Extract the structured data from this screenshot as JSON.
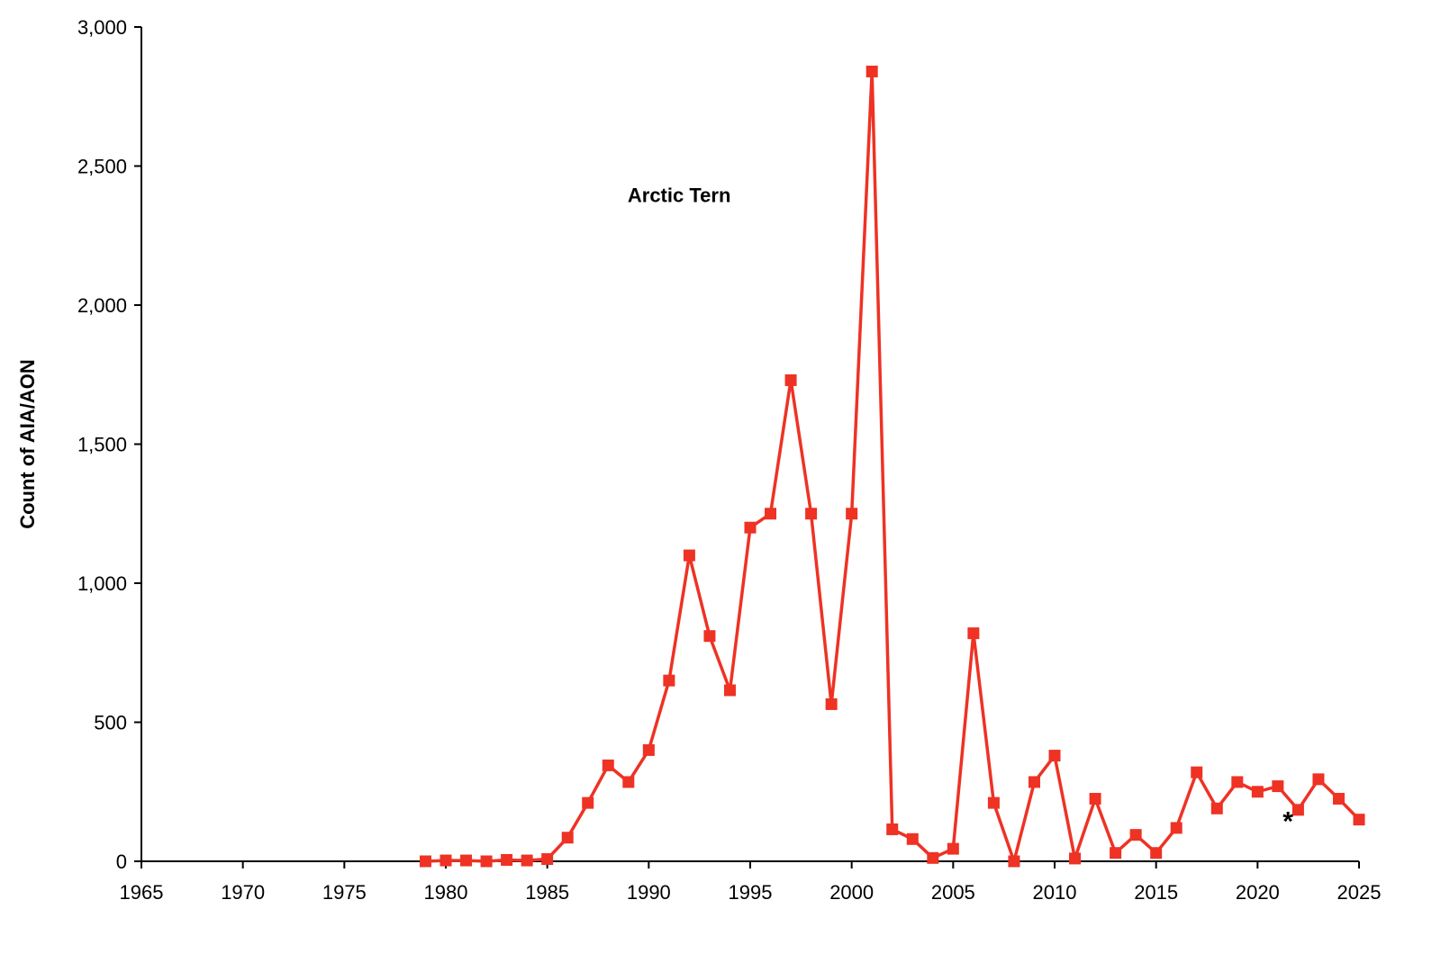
{
  "chart_data": {
    "type": "line",
    "title": "",
    "xlabel": "",
    "ylabel": "Count of AIA/AON",
    "xlim": [
      1965,
      2025
    ],
    "ylim": [
      0,
      3000
    ],
    "grid": false,
    "x_ticks": [
      1965,
      1970,
      1975,
      1980,
      1985,
      1990,
      1995,
      2000,
      2005,
      2010,
      2015,
      2020,
      2025
    ],
    "x_tick_labels": [
      "1965",
      "1970",
      "1975",
      "1980",
      "1985",
      "1990",
      "1995",
      "2000",
      "2005",
      "2010",
      "2015",
      "2020",
      "2025"
    ],
    "y_ticks": [
      0,
      500,
      1000,
      1500,
      2000,
      2500,
      3000
    ],
    "y_tick_labels": [
      "0",
      "500",
      "1,000",
      "1,500",
      "2,000",
      "2,500",
      "3,000"
    ],
    "series": [
      {
        "color": "#ee3224",
        "marker": "square",
        "x": [
          1979,
          1980,
          1981,
          1982,
          1983,
          1984,
          1985,
          1986,
          1987,
          1988,
          1989,
          1990,
          1991,
          1992,
          1993,
          1994,
          1995,
          1996,
          1997,
          1998,
          1999,
          2000,
          2001,
          2002,
          2003,
          2004,
          2005,
          2006,
          2007,
          2008,
          2009,
          2010,
          2011,
          2012,
          2013,
          2014,
          2015,
          2016,
          2017,
          2018,
          2019,
          2020,
          2021,
          2022,
          2023,
          2024,
          2025
        ],
        "values": [
          0,
          3,
          3,
          0,
          5,
          3,
          8,
          85,
          210,
          345,
          285,
          400,
          650,
          1100,
          810,
          615,
          1200,
          1250,
          1730,
          1250,
          565,
          1250,
          2840,
          115,
          80,
          12,
          45,
          820,
          210,
          0,
          285,
          380,
          10,
          225,
          30,
          95,
          30,
          120,
          320,
          190,
          285,
          250,
          270,
          185,
          295,
          225,
          150
        ]
      }
    ],
    "annotations": [
      {
        "text": "Arctic Tern",
        "x": 1991.5,
        "y": 2370
      },
      {
        "text": "*",
        "x": 2021.5,
        "y": 150
      }
    ]
  }
}
